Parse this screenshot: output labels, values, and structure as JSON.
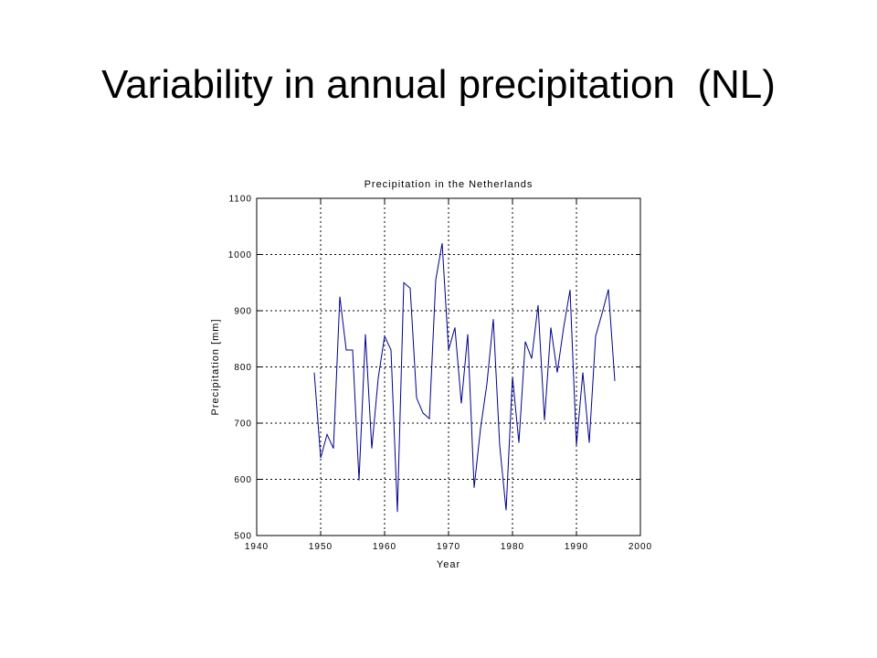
{
  "slide": {
    "title": "Variability in annual precipitation  (NL)"
  },
  "chart_data": {
    "type": "line",
    "title": "Precipitation in the Netherlands",
    "xlabel": "Year",
    "ylabel": "Precipitation [mm]",
    "xlim": [
      1940,
      2000
    ],
    "ylim": [
      500,
      1100
    ],
    "xticks": [
      1940,
      1950,
      1960,
      1970,
      1980,
      1990,
      2000
    ],
    "yticks": [
      500,
      600,
      700,
      800,
      900,
      1000,
      1100
    ],
    "grid": true,
    "line_color": "#00008b",
    "series": [
      {
        "x": [
          1949,
          1950,
          1951,
          1952,
          1953,
          1954,
          1955,
          1956,
          1957,
          1958,
          1959,
          1960,
          1961,
          1962,
          1963,
          1964,
          1965,
          1966,
          1967,
          1968,
          1969,
          1970,
          1971,
          1972,
          1973,
          1974,
          1975,
          1976,
          1977,
          1978,
          1979,
          1980,
          1981,
          1982,
          1983,
          1984,
          1985,
          1986,
          1987,
          1988,
          1989,
          1990,
          1991,
          1992,
          1993,
          1994,
          1995,
          1996
        ],
        "values": [
          790,
          638,
          680,
          655,
          925,
          830,
          830,
          598,
          858,
          655,
          780,
          855,
          830,
          542,
          950,
          940,
          745,
          718,
          708,
          955,
          1020,
          830,
          870,
          735,
          858,
          585,
          690,
          770,
          885,
          660,
          545,
          783,
          665,
          845,
          815,
          910,
          705,
          870,
          790,
          870,
          937,
          660,
          790,
          665,
          855,
          895,
          938,
          775
        ]
      }
    ]
  }
}
